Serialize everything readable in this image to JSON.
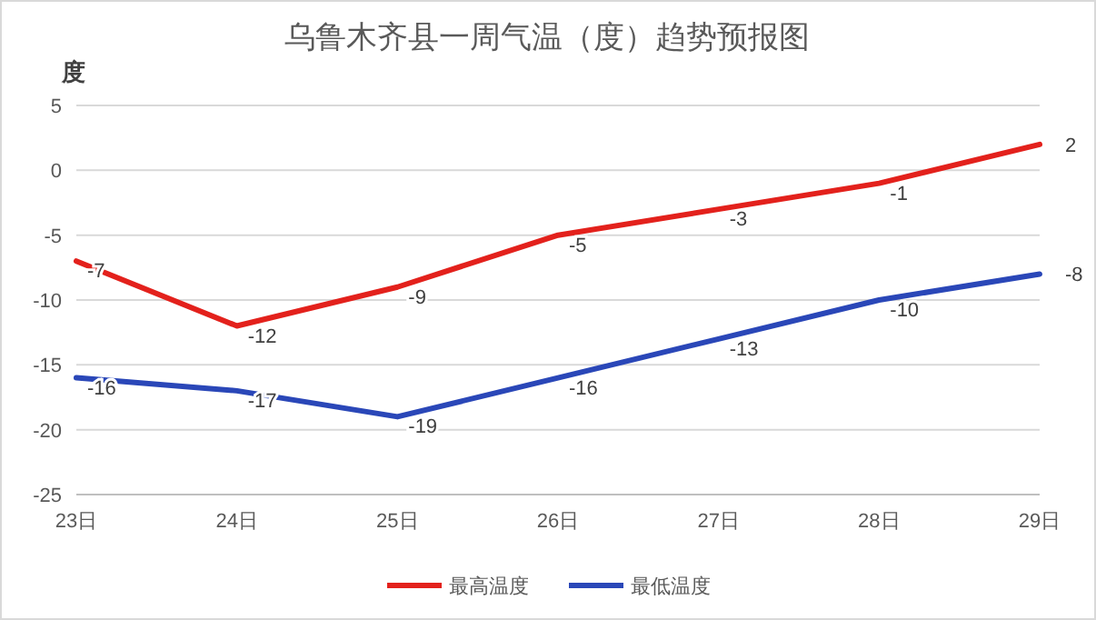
{
  "chart_data": {
    "type": "line",
    "title": "乌鲁木齐县一周气温（度）趋势预报图",
    "ylabel": "度",
    "categories": [
      "23日",
      "24日",
      "25日",
      "26日",
      "27日",
      "28日",
      "29日"
    ],
    "series": [
      {
        "name": "最高温度",
        "color": "#e3211c",
        "values": [
          -7,
          -12,
          -9,
          -5,
          -3,
          -1,
          2
        ]
      },
      {
        "name": "最低温度",
        "color": "#2a47b8",
        "values": [
          -16,
          -17,
          -19,
          -16,
          -13,
          -10,
          -8
        ]
      }
    ],
    "ylim": [
      -25,
      5
    ],
    "yticks": [
      -25,
      -20,
      -15,
      -10,
      -5,
      0,
      5
    ],
    "grid": "y",
    "legend": "bottom",
    "data_labels": true,
    "marker": "none",
    "line_style": "solid"
  }
}
